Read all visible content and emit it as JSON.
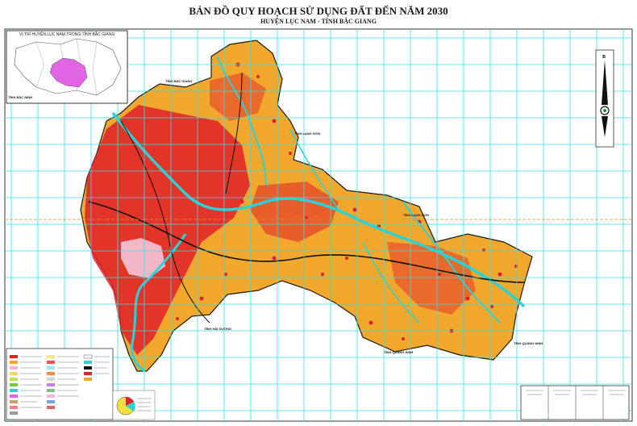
{
  "title": "BẢN ĐỒ QUY HOẠCH SỬ DỤNG ĐẤT ĐẾN NĂM 2030",
  "subtitle": "HUYỆN LỤC NAM - TỈNH BẮC GIANG",
  "inset": {
    "title": "VỊ TRÍ HUYỆN LỤC NAM TRONG TỈNH BẮC GIANG",
    "highlight_color": "#e066e6"
  },
  "compass": {
    "letter": "B"
  },
  "places": [
    {
      "id": "tinh-bac-ninh",
      "label": "TỈNH BẮC NINH"
    },
    {
      "id": "tinh-lang-son",
      "label": "TỈNH LẠNG SƠN"
    },
    {
      "id": "tinh-hai-duong",
      "label": "TỈNH HẢI DƯƠNG"
    },
    {
      "id": "tinh-quang-ninh",
      "label": "TỈNH QUẢNG NINH"
    },
    {
      "id": "north-place",
      "label": "TỈNH BẮC GIANG"
    },
    {
      "id": "east-place",
      "label": "TỈNH LẠNG SƠN"
    },
    {
      "id": "se-place",
      "label": "TỈNH QUẢNG NINH"
    }
  ],
  "colors": {
    "grid": "#33e0e6",
    "land_base": "#f2a82c",
    "residential": "#e0202a",
    "river": "#2ad2d6",
    "urban": "#f3b8c8",
    "road": "#111111"
  }
}
